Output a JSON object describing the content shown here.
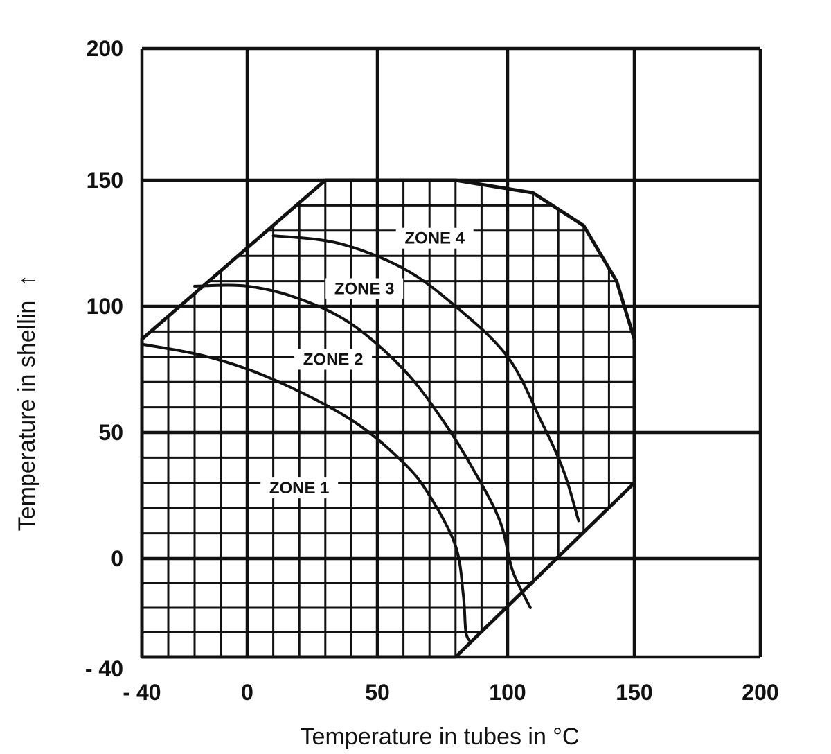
{
  "chart_data": {
    "type": "area",
    "xlabel": "Temperature in tubes in °C",
    "ylabel": "Temperature in shellin",
    "ylabel_arrow": "↑",
    "xlim": [
      -40,
      200
    ],
    "ylim": [
      -40,
      200
    ],
    "x_tick_labels": [
      "- 40",
      "0",
      "50",
      "100",
      "150",
      "200"
    ],
    "y_tick_labels": [
      "200",
      "150",
      "100",
      "50",
      "0",
      "- 40"
    ],
    "x_ticks": [
      -40,
      0,
      50,
      100,
      150,
      200
    ],
    "y_ticks": [
      200,
      150,
      100,
      50,
      0,
      -40
    ],
    "major_grid": {
      "x": [
        -40,
        0,
        50,
        100,
        150,
        200
      ],
      "y": [
        -40,
        0,
        50,
        100,
        150,
        200
      ]
    },
    "fine_grid_step": 10,
    "operating_region": [
      [
        -40,
        87
      ],
      [
        -40,
        -40
      ],
      [
        80,
        -40
      ],
      [
        150,
        30
      ],
      [
        150,
        87
      ],
      [
        143,
        110
      ],
      [
        130,
        132
      ],
      [
        110,
        145
      ],
      [
        80,
        150
      ],
      [
        30,
        150
      ],
      [
        -40,
        87
      ]
    ],
    "zone_boundaries": [
      {
        "from_zone": "ZONE 1",
        "to_zone": "ZONE 2",
        "points": [
          [
            -40,
            85
          ],
          [
            -15,
            80
          ],
          [
            10,
            71
          ],
          [
            40,
            55
          ],
          [
            60,
            38
          ],
          [
            70,
            25
          ],
          [
            80,
            5
          ],
          [
            83,
            -15
          ],
          [
            84,
            -30
          ],
          [
            86,
            -34
          ]
        ]
      },
      {
        "from_zone": "ZONE 2",
        "to_zone": "ZONE 3",
        "points": [
          [
            -20,
            108
          ],
          [
            0,
            108
          ],
          [
            20,
            103
          ],
          [
            40,
            93
          ],
          [
            60,
            75
          ],
          [
            75,
            55
          ],
          [
            87,
            35
          ],
          [
            97,
            15
          ],
          [
            102,
            -5
          ],
          [
            109,
            -20
          ]
        ]
      },
      {
        "from_zone": "ZONE 3",
        "to_zone": "ZONE 4",
        "points": [
          [
            10,
            128
          ],
          [
            35,
            125
          ],
          [
            60,
            115
          ],
          [
            80,
            100
          ],
          [
            100,
            80
          ],
          [
            113,
            55
          ],
          [
            122,
            35
          ],
          [
            128,
            15
          ]
        ]
      }
    ],
    "zones": [
      {
        "label": "ZONE 1",
        "x": 20,
        "y": 28
      },
      {
        "label": "ZONE 2",
        "x": 33,
        "y": 79
      },
      {
        "label": "ZONE 3",
        "x": 45,
        "y": 107
      },
      {
        "label": "ZONE 4",
        "x": 72,
        "y": 127
      }
    ]
  }
}
